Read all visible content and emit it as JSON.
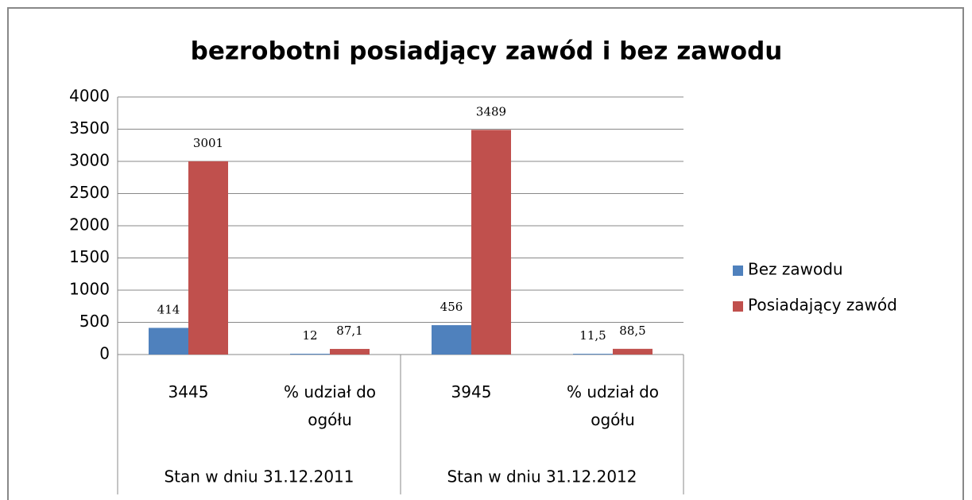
{
  "chart_data": {
    "type": "bar",
    "title": "bezrobotni posiadjący zawód i bez zawodu",
    "categories": [
      "3445",
      "% udział do ogółu",
      "3945",
      "% udział do ogółu"
    ],
    "category_groups": [
      "Stan w dniu 31.12.2011",
      "Stan w dniu 31.12.2012"
    ],
    "series": [
      {
        "name": "Bez zawodu",
        "color": "#4f81bd",
        "values": [
          414,
          12,
          456,
          11.5
        ],
        "value_labels": [
          "414",
          "12",
          "456",
          "11,5"
        ]
      },
      {
        "name": "Posiadający zawód",
        "color": "#c0504d",
        "values": [
          3001,
          87.1,
          3489,
          88.5
        ],
        "value_labels": [
          "3001",
          "87,1",
          "3489",
          "88,5"
        ]
      }
    ],
    "ylim": [
      0,
      4000
    ],
    "yticks": [
      0,
      500,
      1000,
      1500,
      2000,
      2500,
      3000,
      3500,
      4000
    ],
    "grid": true,
    "legend": "right"
  }
}
